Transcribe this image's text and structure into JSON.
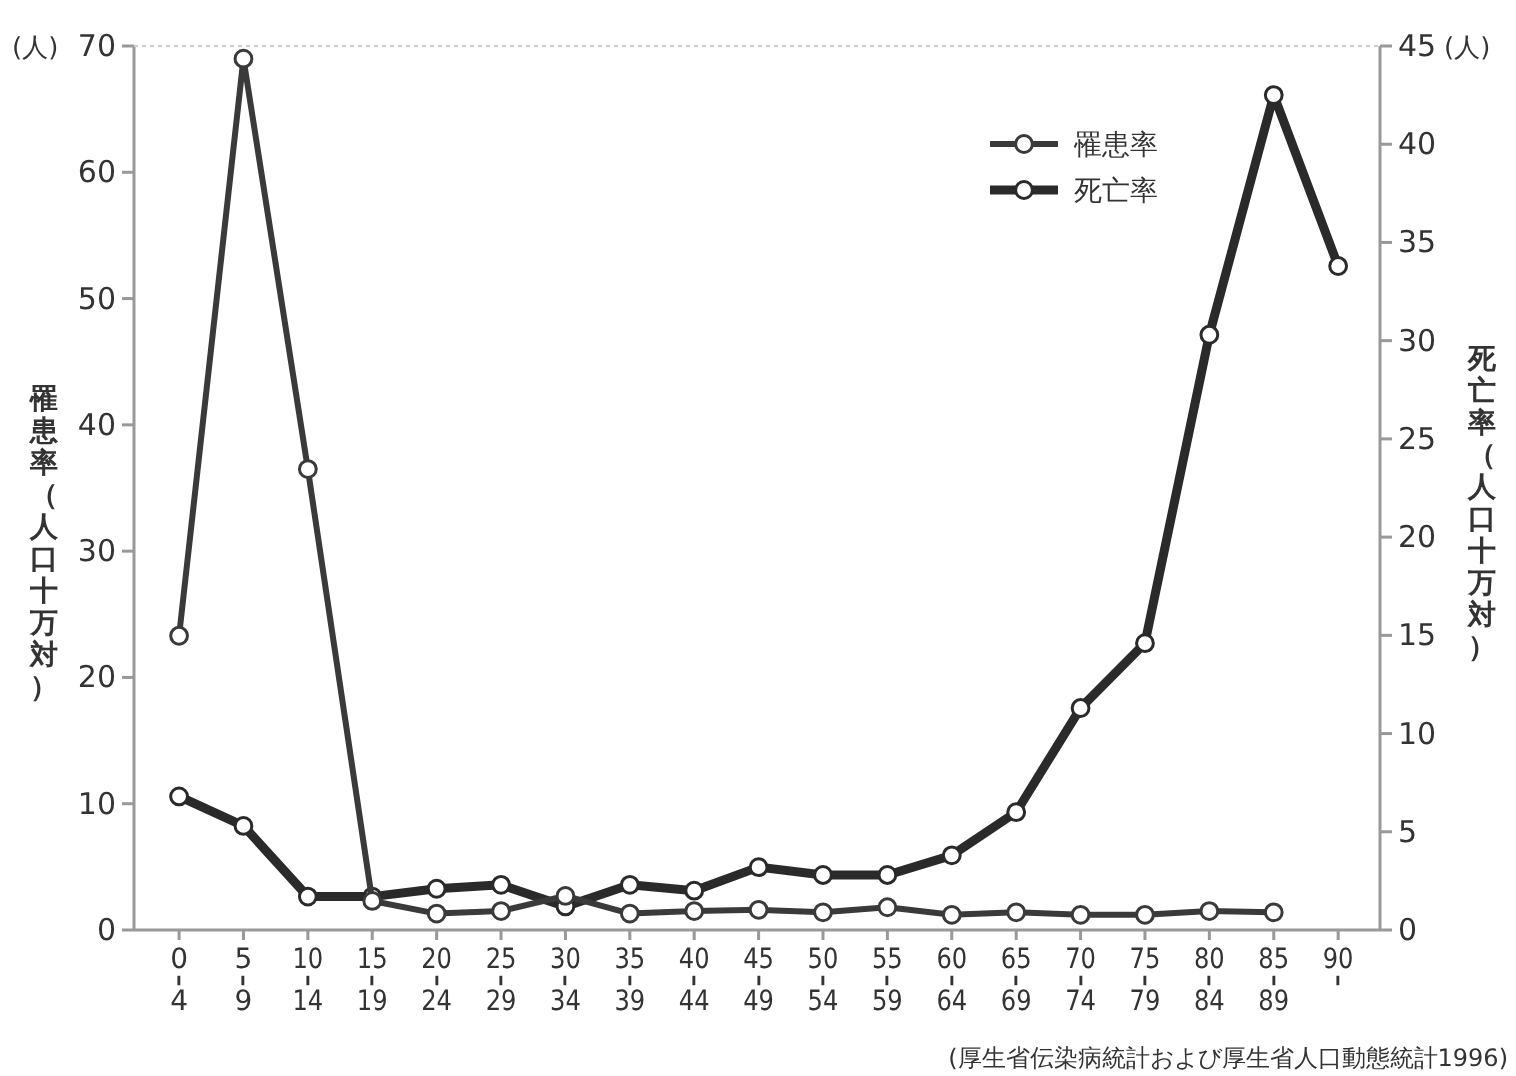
{
  "chart_data": {
    "type": "line",
    "categories": [
      "0-4",
      "5-9",
      "10-14",
      "15-19",
      "20-24",
      "25-29",
      "30-34",
      "35-39",
      "40-44",
      "45-49",
      "50-54",
      "55-59",
      "60-64",
      "65-69",
      "70-74",
      "75-79",
      "80-84",
      "85-89",
      "90-"
    ],
    "series": [
      {
        "name": "罹患率",
        "color": "#3a3a3a",
        "values": [
          23.3,
          69,
          36.5,
          2.3,
          1.3,
          1.5,
          2.7,
          1.3,
          1.5,
          1.6,
          1.4,
          1.8,
          1.2,
          1.4,
          1.2,
          1.2,
          1.5,
          1.4,
          null
        ]
      },
      {
        "name": "死亡率",
        "color": "#2a2a2a",
        "axis": "y2",
        "values": [
          6.8,
          5.3,
          1.7,
          1.7,
          2.1,
          2.3,
          1.2,
          2.3,
          2.0,
          3.2,
          2.8,
          2.8,
          3.8,
          6.0,
          11.3,
          14.6,
          30.3,
          42.5,
          33.8
        ]
      }
    ],
    "ylabel": "罹患率（人口十万対）",
    "y2label": "死亡率（人口十万対）",
    "ylim": [
      0,
      70
    ],
    "yticks": [
      0,
      10,
      20,
      30,
      40,
      50,
      60,
      70
    ],
    "y2lim": [
      0,
      45
    ],
    "y2ticks": [
      0,
      5,
      10,
      15,
      20,
      25,
      30,
      35,
      40,
      45
    ],
    "legend": "top right",
    "marker": "circle",
    "line_style": "solid",
    "grid": false,
    "annotations": [
      "(人)",
      "(人)",
      "(厚生省伝染病統計および厚生省人口動態統計1996)"
    ]
  }
}
